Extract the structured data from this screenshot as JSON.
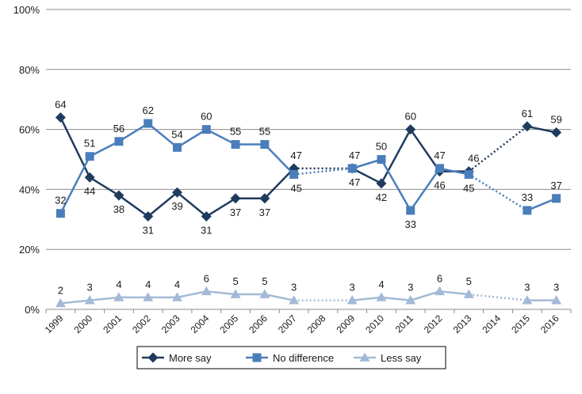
{
  "chart_data": {
    "type": "line",
    "categories": [
      "1999",
      "2000",
      "2001",
      "2002",
      "2003",
      "2004",
      "2005",
      "2006",
      "2007",
      "2008",
      "2009",
      "2010",
      "2011",
      "2012",
      "2013",
      "2014",
      "2015",
      "2016"
    ],
    "ylim": [
      0,
      100
    ],
    "yticks": [
      "0%",
      "20%",
      "40%",
      "60%",
      "80%",
      "100%"
    ],
    "grid": true,
    "legend_position": "bottom",
    "series": [
      {
        "name": "More say",
        "color": "#1f3b5e",
        "marker": "diamond",
        "values": [
          64,
          44,
          38,
          31,
          39,
          31,
          37,
          37,
          47,
          null,
          47,
          42,
          60,
          46,
          46,
          null,
          61,
          59
        ],
        "labels": [
          "64",
          "44",
          "38",
          "31",
          "39",
          "31",
          "37",
          "37",
          "47",
          "",
          "47",
          "42",
          "60",
          "46",
          "46",
          "",
          "61",
          "59"
        ]
      },
      {
        "name": "No difference",
        "color": "#4a7ebb",
        "marker": "square",
        "values": [
          32,
          51,
          56,
          62,
          54,
          60,
          55,
          55,
          45,
          null,
          47,
          50,
          33,
          47,
          45,
          null,
          33,
          37
        ],
        "labels": [
          "32",
          "51",
          "56",
          "62",
          "54",
          "60",
          "55",
          "55",
          "45",
          "",
          "47",
          "50",
          "33",
          "47",
          "45",
          "",
          "33",
          "37"
        ]
      },
      {
        "name": "Less say",
        "color": "#a3bad6",
        "marker": "triangle",
        "values": [
          2,
          3,
          4,
          4,
          4,
          6,
          5,
          5,
          3,
          null,
          3,
          4,
          3,
          6,
          5,
          null,
          3,
          3
        ],
        "labels": [
          "2",
          "3",
          "4",
          "4",
          "4",
          "6",
          "5",
          "5",
          "3",
          "",
          "3",
          "4",
          "3",
          "6",
          "5",
          "",
          "3",
          "3"
        ]
      }
    ]
  }
}
